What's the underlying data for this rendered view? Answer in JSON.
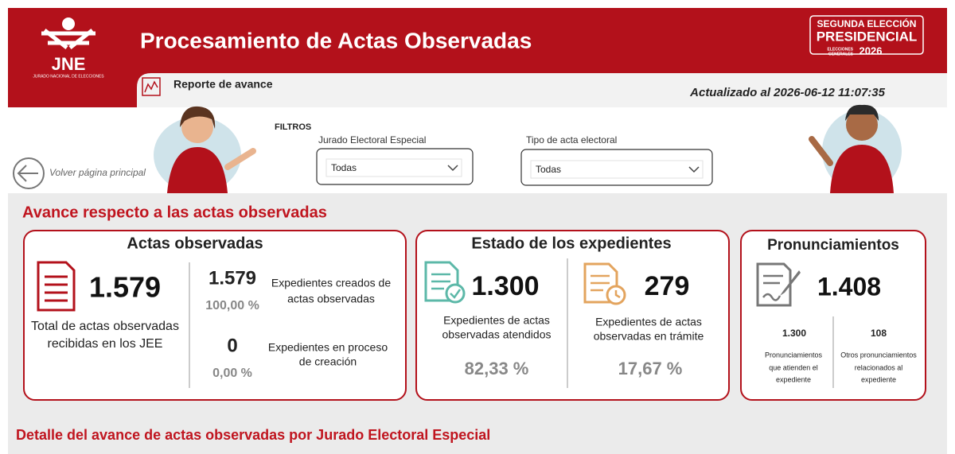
{
  "header": {
    "logo": {
      "acronym": "JNE",
      "name": "JURADO NACIONAL DE ELECCIONES"
    },
    "title": "Procesamiento de Actas Observadas",
    "badge": {
      "line1": "SEGUNDA ELECCIÓN",
      "line2": "PRESIDENCIAL",
      "line3": "ELECCIONES",
      "line4": "GENERALES",
      "year": "2026"
    },
    "tab": "Reporte de avance",
    "updated": "Actualizado al 2026-06-12 11:07:35"
  },
  "filters": {
    "title": "FILTROS",
    "back": "Volver página principal",
    "items": [
      {
        "label": "Jurado Electoral Especial",
        "value": "Todas"
      },
      {
        "label": "Tipo de acta electoral",
        "value": "Todas"
      }
    ]
  },
  "section_title": "Avance respecto a las actas observadas",
  "cards": [
    {
      "title": "Actas observadas",
      "main_value": "1.579",
      "main_caption": [
        "Total de actas observadas",
        "recibidas en los JEE"
      ],
      "rows": [
        {
          "value": "1.579",
          "percent": "100,00 %",
          "caption": [
            "Expedientes creados de",
            "actas observadas"
          ]
        },
        {
          "value": "0",
          "percent": "0,00 %",
          "caption": [
            "Expedientes en proceso",
            "de creación"
          ]
        }
      ]
    },
    {
      "title": "Estado de los expedientes",
      "items": [
        {
          "value": "1.300",
          "caption": [
            "Expedientes de actas",
            "observadas atendidos"
          ],
          "percent": "82,33 %"
        },
        {
          "value": "279",
          "caption": [
            "Expedientes de actas",
            "observadas en trámite"
          ],
          "percent": "17,67 %"
        }
      ]
    },
    {
      "title": "Pronunciamientos",
      "main_value": "1.408",
      "items": [
        {
          "value": "1.300",
          "caption": [
            "Pronunciamientos",
            "que atienden el",
            "expediente"
          ]
        },
        {
          "value": "108",
          "caption": [
            "Otros pronunciamientos",
            "relacionados al",
            "expediente"
          ]
        }
      ]
    }
  ],
  "footer_title": "Detalle del avance de actas observadas por Jurado Electoral Especial"
}
